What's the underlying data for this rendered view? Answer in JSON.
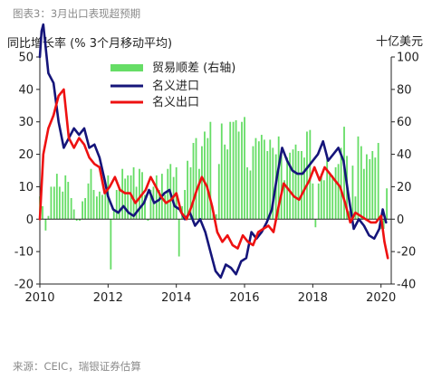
{
  "caption": "图表3：3月出口表现超预期",
  "source": "来源：CEIC，瑞银证券估算",
  "chart_data": {
    "type": "bar+line",
    "left_axis_title": "同比增长率 (% 3个月移动平均)",
    "right_axis_title": "十亿美元",
    "x_ticks": [
      "2010",
      "2012",
      "2014",
      "2016",
      "2018",
      "2020"
    ],
    "x_range": [
      2010.0,
      2020.3
    ],
    "left_ylim": [
      -20,
      50
    ],
    "left_ticks": [
      -20,
      -10,
      0,
      10,
      20,
      30,
      40,
      50
    ],
    "right_ylim": [
      -40,
      100
    ],
    "right_ticks": [
      -40,
      -20,
      0,
      20,
      40,
      60,
      80,
      100
    ],
    "legend": [
      "贸易顺差 (右轴)",
      "名义进口",
      "名义出口"
    ],
    "colors": {
      "bars": "#66dd66",
      "imports": "#15157a",
      "exports": "#ee1111"
    },
    "trade_balance": {
      "name": "贸易顺差 (右轴)",
      "x": [
        2010.0,
        2010.08,
        2010.17,
        2010.25,
        2010.33,
        2010.42,
        2010.5,
        2010.58,
        2010.67,
        2010.75,
        2010.83,
        2010.92,
        2011.0,
        2011.08,
        2011.17,
        2011.25,
        2011.33,
        2011.42,
        2011.5,
        2011.58,
        2011.67,
        2011.75,
        2011.83,
        2011.92,
        2012.0,
        2012.08,
        2012.17,
        2012.25,
        2012.33,
        2012.42,
        2012.5,
        2012.58,
        2012.67,
        2012.75,
        2012.83,
        2012.92,
        2013.0,
        2013.08,
        2013.17,
        2013.25,
        2013.33,
        2013.42,
        2013.5,
        2013.58,
        2013.67,
        2013.75,
        2013.83,
        2013.92,
        2014.0,
        2014.08,
        2014.17,
        2014.25,
        2014.33,
        2014.42,
        2014.5,
        2014.58,
        2014.67,
        2014.75,
        2014.83,
        2014.92,
        2015.0,
        2015.08,
        2015.17,
        2015.25,
        2015.33,
        2015.42,
        2015.5,
        2015.58,
        2015.67,
        2015.75,
        2015.83,
        2015.92,
        2016.0,
        2016.08,
        2016.17,
        2016.25,
        2016.33,
        2016.42,
        2016.5,
        2016.58,
        2016.67,
        2016.75,
        2016.83,
        2016.92,
        2017.0,
        2017.08,
        2017.17,
        2017.25,
        2017.33,
        2017.42,
        2017.5,
        2017.58,
        2017.67,
        2017.75,
        2017.83,
        2017.92,
        2018.0,
        2018.08,
        2018.17,
        2018.25,
        2018.33,
        2018.42,
        2018.5,
        2018.58,
        2018.67,
        2018.75,
        2018.83,
        2018.92,
        2019.0,
        2019.08,
        2019.17,
        2019.25,
        2019.33,
        2019.42,
        2019.5,
        2019.58,
        2019.67,
        2019.75,
        2019.83,
        2019.92,
        2020.0,
        2020.08,
        2020.17
      ],
      "values": [
        14,
        8,
        -7,
        2,
        20,
        20,
        28,
        20,
        17,
        27,
        23,
        13,
        6,
        -1,
        -1,
        11,
        13,
        22,
        31,
        18,
        14,
        17,
        15,
        16,
        27,
        -31,
        5,
        18,
        19,
        31,
        25,
        27,
        27,
        32,
        20,
        31,
        29,
        15,
        -1,
        18,
        20,
        27,
        18,
        28,
        15,
        31,
        34,
        26,
        32,
        -23,
        8,
        18,
        36,
        32,
        47,
        50,
        31,
        45,
        54,
        50,
        60,
        3,
        3,
        34,
        59,
        46,
        43,
        60,
        60,
        61,
        54,
        60,
        63,
        32,
        30,
        45,
        50,
        48,
        52,
        49,
        42,
        49,
        44,
        40,
        51,
        42,
        24,
        38,
        41,
        43,
        46,
        42,
        42,
        38,
        54,
        55,
        22,
        -5,
        22,
        28,
        24,
        40,
        28,
        27,
        32,
        34,
        44,
        57,
        39,
        5,
        33,
        14,
        51,
        45,
        31,
        40,
        37,
        42,
        38,
        47,
        -6,
        -6,
        19
      ]
    },
    "imports": {
      "name": "名义进口",
      "x": [
        2010.0,
        2010.05,
        2010.1,
        2010.25,
        2010.4,
        2010.55,
        2010.7,
        2010.85,
        2011.0,
        2011.15,
        2011.3,
        2011.45,
        2011.6,
        2011.75,
        2011.9,
        2012.0,
        2012.15,
        2012.3,
        2012.45,
        2012.6,
        2012.75,
        2012.9,
        2013.05,
        2013.2,
        2013.35,
        2013.5,
        2013.65,
        2013.8,
        2013.95,
        2014.1,
        2014.25,
        2014.4,
        2014.55,
        2014.7,
        2014.85,
        2015.0,
        2015.15,
        2015.3,
        2015.45,
        2015.6,
        2015.75,
        2015.9,
        2016.05,
        2016.2,
        2016.35,
        2016.5,
        2016.65,
        2016.8,
        2016.95,
        2017.1,
        2017.25,
        2017.4,
        2017.55,
        2017.7,
        2017.85,
        2018.0,
        2018.15,
        2018.3,
        2018.45,
        2018.6,
        2018.75,
        2018.9,
        2019.05,
        2019.2,
        2019.35,
        2019.5,
        2019.65,
        2019.8,
        2019.95,
        2020.05,
        2020.15
      ],
      "values": [
        50,
        58,
        60,
        45,
        42,
        30,
        22,
        25,
        28,
        26,
        28,
        22,
        23,
        19,
        12,
        7,
        3,
        2,
        4,
        2,
        1,
        3,
        5,
        9,
        5,
        6,
        8,
        9,
        4,
        3,
        0,
        2,
        -2,
        0,
        -4,
        -10,
        -16,
        -18,
        -14,
        -15,
        -17,
        -13,
        -12,
        -4,
        -6,
        -4,
        -1,
        3,
        13,
        22,
        18,
        15,
        14,
        14,
        16,
        18,
        20,
        24,
        18,
        20,
        22,
        18,
        7,
        -3,
        0,
        -2,
        -5,
        -6,
        -3,
        3,
        -1
      ]
    },
    "exports": {
      "name": "名义出口",
      "x": [
        2010.0,
        2010.1,
        2010.25,
        2010.4,
        2010.55,
        2010.7,
        2010.85,
        2011.0,
        2011.15,
        2011.3,
        2011.45,
        2011.6,
        2011.75,
        2011.9,
        2012.05,
        2012.2,
        2012.35,
        2012.5,
        2012.65,
        2012.8,
        2012.95,
        2013.1,
        2013.25,
        2013.4,
        2013.55,
        2013.7,
        2013.85,
        2014.0,
        2014.15,
        2014.3,
        2014.45,
        2014.6,
        2014.75,
        2014.9,
        2015.05,
        2015.2,
        2015.35,
        2015.5,
        2015.65,
        2015.8,
        2015.95,
        2016.1,
        2016.25,
        2016.4,
        2016.55,
        2016.7,
        2016.85,
        2017.0,
        2017.15,
        2017.3,
        2017.45,
        2017.6,
        2017.75,
        2017.9,
        2018.05,
        2018.2,
        2018.35,
        2018.5,
        2018.65,
        2018.8,
        2018.95,
        2019.1,
        2019.25,
        2019.4,
        2019.55,
        2019.7,
        2019.85,
        2020.0,
        2020.1,
        2020.2
      ],
      "values": [
        0,
        20,
        28,
        32,
        38,
        40,
        25,
        22,
        25,
        23,
        19,
        17,
        16,
        8,
        10,
        13,
        9,
        8,
        8,
        5,
        7,
        9,
        13,
        10,
        7,
        5,
        6,
        8,
        2,
        0,
        4,
        9,
        13,
        10,
        4,
        -4,
        -7,
        -5,
        -8,
        -9,
        -5,
        -7,
        -8,
        -4,
        -3,
        -2,
        -4,
        4,
        11,
        9,
        7,
        6,
        9,
        12,
        16,
        12,
        16,
        14,
        12,
        10,
        5,
        -1,
        2,
        1,
        0,
        -1,
        -1,
        1,
        -7,
        -12
      ]
    }
  }
}
